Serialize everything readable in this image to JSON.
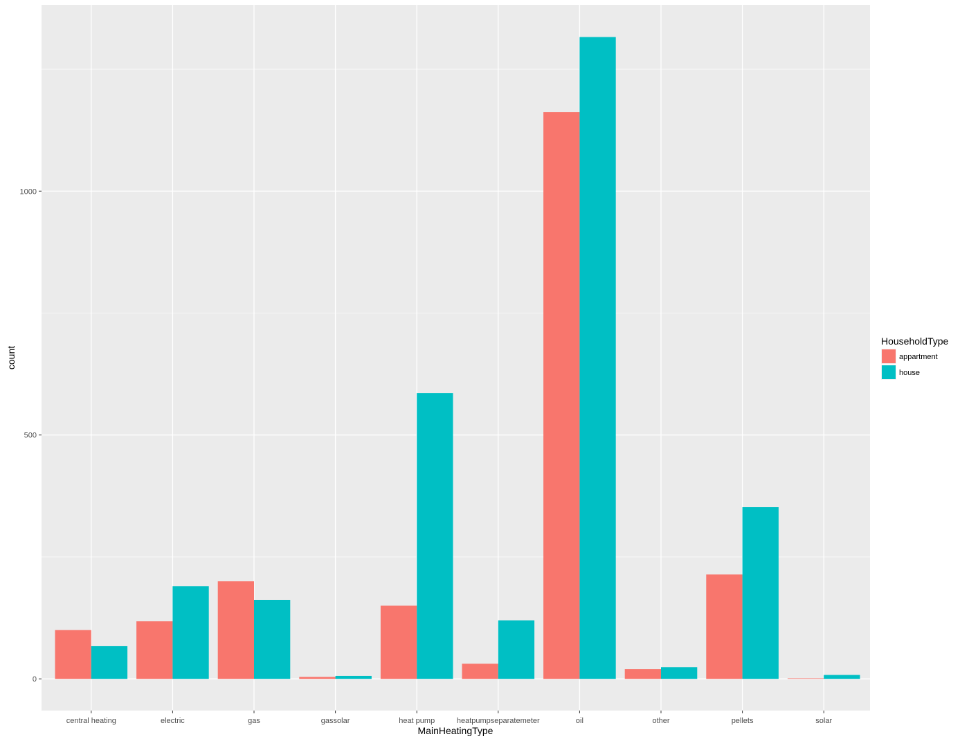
{
  "chart_data": {
    "type": "bar",
    "xlabel": "MainHeatingType",
    "ylabel": "count",
    "categories": [
      "central heating",
      "electric",
      "gas",
      "gassolar",
      "heat pump",
      "heatpumpseparatemeter",
      "oil",
      "other",
      "pellets",
      "solar"
    ],
    "series": [
      {
        "name": "appartment",
        "color": "#F8766D",
        "values": [
          100,
          118,
          200,
          4,
          150,
          31,
          1162,
          20,
          214,
          1
        ]
      },
      {
        "name": "house",
        "color": "#00BFC4",
        "values": [
          67,
          190,
          162,
          6,
          586,
          120,
          1316,
          24,
          352,
          8
        ]
      }
    ],
    "yticks": [
      0,
      500,
      1000
    ],
    "ylim": [
      -65,
      1382
    ],
    "grid": true,
    "legend": {
      "title": "HouseholdType",
      "placement": "right"
    },
    "panel_background": "#EBEBEB",
    "grid_color": "#FFFFFF"
  }
}
